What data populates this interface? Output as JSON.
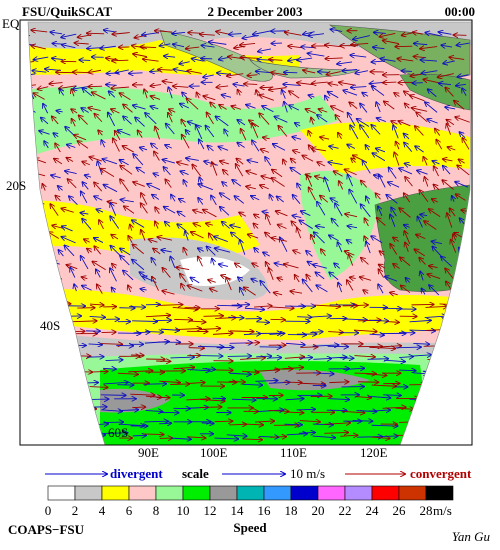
{
  "header": {
    "left": "FSU/QuikSCAT",
    "center": "2 December 2003",
    "right": "00:00"
  },
  "map": {
    "lat_labels": [
      "EQ",
      "20S",
      "40S",
      "60S"
    ],
    "lon_labels": [
      "90E",
      "100E",
      "110E",
      "120E"
    ]
  },
  "scale": {
    "divergent": "divergent",
    "scale": "scale",
    "reference": "10 m/s",
    "convergent": "convergent"
  },
  "legend": {
    "labels": [
      "0",
      "2",
      "4",
      "6",
      "8",
      "10",
      "12",
      "14",
      "16",
      "18",
      "20",
      "22",
      "24",
      "26",
      "28"
    ],
    "unit": "m/s",
    "title": "Speed",
    "colors": [
      "#ffffff",
      "#c8c8c8",
      "#ffff00",
      "#ffc8c8",
      "#98f898",
      "#00ee00",
      "#999999",
      "#00b4b4",
      "#3399ff",
      "#0000cc",
      "#ff66ff",
      "#b48cff",
      "#ff0000",
      "#cc3300",
      "#000000"
    ]
  },
  "footer": {
    "left": "COAPS−FSU",
    "right": "Yan Gu"
  }
}
